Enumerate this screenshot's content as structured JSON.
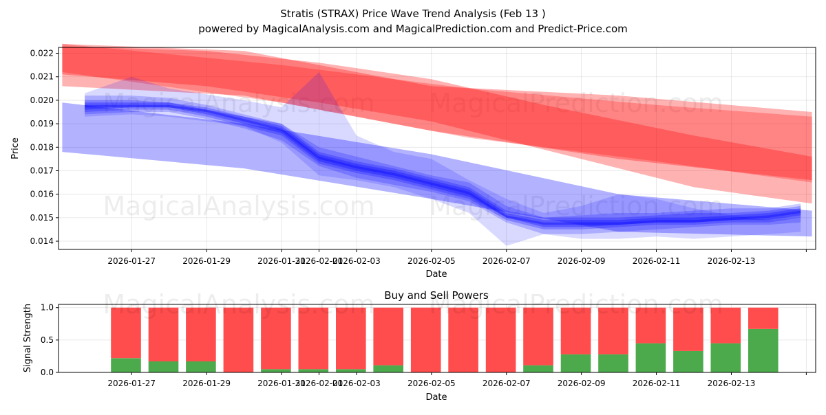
{
  "chart_data": [
    {
      "type": "area",
      "title": "Stratis (STRAX) Price Wave Trend Analysis (Feb 13 )",
      "subtitle": "powered by MagicalAnalysis.com and MagicalPrediction.com and Predict-Price.com",
      "xlabel": "Date",
      "ylabel": "Price",
      "x_start": "2026-01-25",
      "x_end": "2026-02-14",
      "xlim_days": [
        -0.95,
        19.25
      ],
      "ylim": [
        0.01365,
        0.02225
      ],
      "yticks": [
        0.014,
        0.015,
        0.016,
        0.017,
        0.018,
        0.019,
        0.02,
        0.021,
        0.022
      ],
      "ytick_labels": [
        "0.014",
        "0.015",
        "0.016",
        "0.017",
        "0.018",
        "0.019",
        "0.020",
        "0.021",
        "0.022"
      ],
      "xtick_days": [
        1,
        3,
        5,
        6,
        7,
        9,
        11,
        13,
        15,
        17,
        19
      ],
      "xtick_labels": [
        "2026-01-27",
        "2026-01-29",
        "2026-01-31",
        "2026-02-01",
        "2026-02-03",
        "2026-02-05",
        "2026-02-07",
        "2026-02-09",
        "2026-02-11",
        "2026-02-13",
        ""
      ],
      "grid": true,
      "series": [
        {
          "name": "red-band-upper",
          "color": "#ff0000",
          "opacity": 0.3,
          "x": [
            -0.85,
            4,
            9,
            14,
            19.15
          ],
          "upper": [
            0.0224,
            0.0221,
            0.0206,
            0.0202,
            0.0195
          ],
          "lower": [
            0.0206,
            0.0202,
            0.0187,
            0.0175,
            0.0166
          ]
        },
        {
          "name": "red-band-middle",
          "color": "#ff0000",
          "opacity": 0.3,
          "x": [
            -0.85,
            3,
            6,
            9,
            12,
            16,
            19.15
          ],
          "upper": [
            0.0223,
            0.0221,
            0.0216,
            0.0209,
            0.0198,
            0.0185,
            0.0176
          ],
          "lower": [
            0.0211,
            0.0206,
            0.0199,
            0.0191,
            0.0179,
            0.0163,
            0.0156
          ]
        },
        {
          "name": "red-band-lower",
          "color": "#ff0000",
          "opacity": 0.25,
          "x": [
            -0.85,
            5,
            10,
            15,
            19.15
          ],
          "upper": [
            0.0224,
            0.0215,
            0.0205,
            0.0198,
            0.0193
          ],
          "lower": [
            0.0212,
            0.0199,
            0.0184,
            0.0174,
            0.0165
          ]
        },
        {
          "name": "blue-band-wide",
          "color": "#0000ff",
          "opacity": 0.3,
          "x": [
            -0.85,
            4,
            9,
            14,
            19.15
          ],
          "upper": [
            0.0199,
            0.019,
            0.0177,
            0.016,
            0.0153
          ],
          "lower": [
            0.0178,
            0.0171,
            0.0158,
            0.0144,
            0.0142
          ]
        },
        {
          "name": "blue-band-1",
          "color": "#0000ff",
          "opacity": 0.15,
          "x": [
            -0.25,
            1,
            2,
            4,
            5,
            6,
            7,
            8,
            9,
            10,
            11,
            12,
            13,
            14,
            15,
            16,
            17,
            18,
            18.85
          ],
          "upper": [
            0.0203,
            0.021,
            0.0205,
            0.02,
            0.0197,
            0.0212,
            0.0185,
            0.0178,
            0.0175,
            0.0166,
            0.0158,
            0.0152,
            0.0155,
            0.016,
            0.0158,
            0.0154,
            0.0151,
            0.0149,
            0.015
          ],
          "lower": [
            0.0193,
            0.0194,
            0.0193,
            0.0189,
            0.0182,
            0.0168,
            0.0166,
            0.0163,
            0.0158,
            0.0152,
            0.0138,
            0.0143,
            0.0141,
            0.0141,
            0.0142,
            0.0141,
            0.0142,
            0.0143,
            0.0144
          ]
        },
        {
          "name": "blue-band-2",
          "color": "#0000ff",
          "opacity": 0.2,
          "x": [
            -0.25,
            1,
            2,
            3,
            4,
            5,
            6,
            7,
            8,
            9,
            10,
            11,
            12,
            13,
            14,
            15,
            16,
            17,
            18,
            18.85
          ],
          "upper": [
            0.0202,
            0.0202,
            0.0201,
            0.0198,
            0.0194,
            0.019,
            0.018,
            0.0176,
            0.0172,
            0.0168,
            0.0165,
            0.0155,
            0.015,
            0.0151,
            0.0152,
            0.0152,
            0.0153,
            0.0154,
            0.0154,
            0.0156
          ],
          "lower": [
            0.0194,
            0.0195,
            0.0195,
            0.0192,
            0.0188,
            0.0183,
            0.0172,
            0.0167,
            0.0164,
            0.0161,
            0.0157,
            0.0148,
            0.0143,
            0.0143,
            0.0144,
            0.0145,
            0.0146,
            0.0147,
            0.0147,
            0.0148
          ]
        },
        {
          "name": "blue-band-3",
          "color": "#0000ff",
          "opacity": 0.25,
          "x": [
            -0.25,
            1,
            2,
            3,
            4,
            5,
            6,
            7,
            8,
            9,
            10,
            11,
            12,
            13,
            14,
            15,
            16,
            17,
            18,
            18.85
          ],
          "upper": [
            0.02,
            0.02,
            0.0199,
            0.0197,
            0.0193,
            0.019,
            0.0178,
            0.0174,
            0.0171,
            0.0167,
            0.0163,
            0.0153,
            0.015,
            0.015,
            0.015,
            0.0151,
            0.0152,
            0.0152,
            0.0153,
            0.0155
          ],
          "lower": [
            0.0195,
            0.0196,
            0.0196,
            0.0193,
            0.0189,
            0.0185,
            0.0173,
            0.0169,
            0.0166,
            0.0162,
            0.0158,
            0.0149,
            0.0145,
            0.0145,
            0.0146,
            0.0147,
            0.0147,
            0.0148,
            0.0148,
            0.015
          ]
        },
        {
          "name": "blue-band-4",
          "color": "#0000ff",
          "opacity": 0.3,
          "x": [
            -0.25,
            1,
            2,
            3,
            4,
            5,
            6,
            7,
            8,
            9,
            10,
            11,
            12,
            13,
            14,
            15,
            16,
            17,
            18,
            18.85
          ],
          "upper": [
            0.0199,
            0.0199,
            0.0199,
            0.0196,
            0.0193,
            0.0189,
            0.0177,
            0.0173,
            0.017,
            0.0166,
            0.0162,
            0.0152,
            0.0149,
            0.0149,
            0.0149,
            0.015,
            0.015,
            0.0151,
            0.0152,
            0.0154
          ],
          "lower": [
            0.0196,
            0.0197,
            0.0197,
            0.0194,
            0.019,
            0.0186,
            0.0174,
            0.017,
            0.0167,
            0.0163,
            0.0159,
            0.015,
            0.0146,
            0.0146,
            0.0147,
            0.0148,
            0.0148,
            0.0149,
            0.0149,
            0.0151
          ]
        },
        {
          "name": "blue-band-core",
          "color": "#0000ff",
          "opacity": 0.35,
          "x": [
            -0.25,
            1,
            2,
            3,
            4,
            5,
            6,
            7,
            8,
            9,
            10,
            11,
            12,
            13,
            14,
            15,
            16,
            17,
            18,
            18.85
          ],
          "upper": [
            0.0198,
            0.0198,
            0.0198,
            0.0196,
            0.0192,
            0.0188,
            0.0176,
            0.0172,
            0.0169,
            0.0165,
            0.0161,
            0.0151,
            0.0148,
            0.0148,
            0.0148,
            0.0149,
            0.0149,
            0.015,
            0.0151,
            0.0153
          ],
          "lower": [
            0.0197,
            0.0197,
            0.0197,
            0.0195,
            0.0191,
            0.0187,
            0.0175,
            0.0171,
            0.0168,
            0.0164,
            0.016,
            0.015,
            0.0147,
            0.0147,
            0.0147,
            0.0148,
            0.0148,
            0.0149,
            0.015,
            0.0152
          ]
        }
      ],
      "watermarks": [
        "MagicalAnalysis.com",
        "MagicalPrediction.com",
        "MagicalAnalysis.com",
        "MagicalPrediction.com"
      ]
    },
    {
      "type": "bar",
      "stacked": true,
      "title": "Buy and Sell Powers",
      "xlabel": "Date",
      "ylabel": "Signal Strength",
      "xlim_days": [
        -0.95,
        19.25
      ],
      "ylim": [
        0,
        1.05
      ],
      "yticks": [
        0.0,
        0.5,
        1.0
      ],
      "ytick_labels": [
        "0.0",
        "0.5",
        "1.0"
      ],
      "xtick_days": [
        1,
        3,
        5,
        6,
        7,
        9,
        11,
        13,
        15,
        17,
        19
      ],
      "xtick_labels": [
        "2026-01-27",
        "2026-01-29",
        "2026-01-31",
        "2026-02-01",
        "2026-02-03",
        "2026-02-05",
        "2026-02-07",
        "2026-02-09",
        "2026-02-11",
        "2026-02-13",
        ""
      ],
      "grid": true,
      "bar_days": [
        0.85,
        1.85,
        2.85,
        3.85,
        4.85,
        5.85,
        6.85,
        7.85,
        8.85,
        9.85,
        10.85,
        11.85,
        12.85,
        13.85,
        14.85,
        15.85,
        16.85,
        17.85
      ],
      "series": [
        {
          "name": "Buy",
          "color": "#4caa4c",
          "values": [
            0.22,
            0.17,
            0.17,
            0.0,
            0.05,
            0.05,
            0.05,
            0.11,
            0.0,
            0.0,
            0.0,
            0.11,
            0.28,
            0.28,
            0.45,
            0.33,
            0.45,
            0.67
          ]
        },
        {
          "name": "Sell",
          "color": "#ff4c4c",
          "values": [
            0.78,
            0.83,
            0.83,
            1.0,
            0.95,
            0.95,
            0.95,
            0.89,
            1.0,
            1.0,
            1.0,
            0.89,
            0.72,
            0.72,
            0.55,
            0.67,
            0.55,
            0.33
          ]
        }
      ],
      "watermarks": [
        "MagicalAnalysis.com",
        "MagicalPrediction.com"
      ]
    }
  ]
}
